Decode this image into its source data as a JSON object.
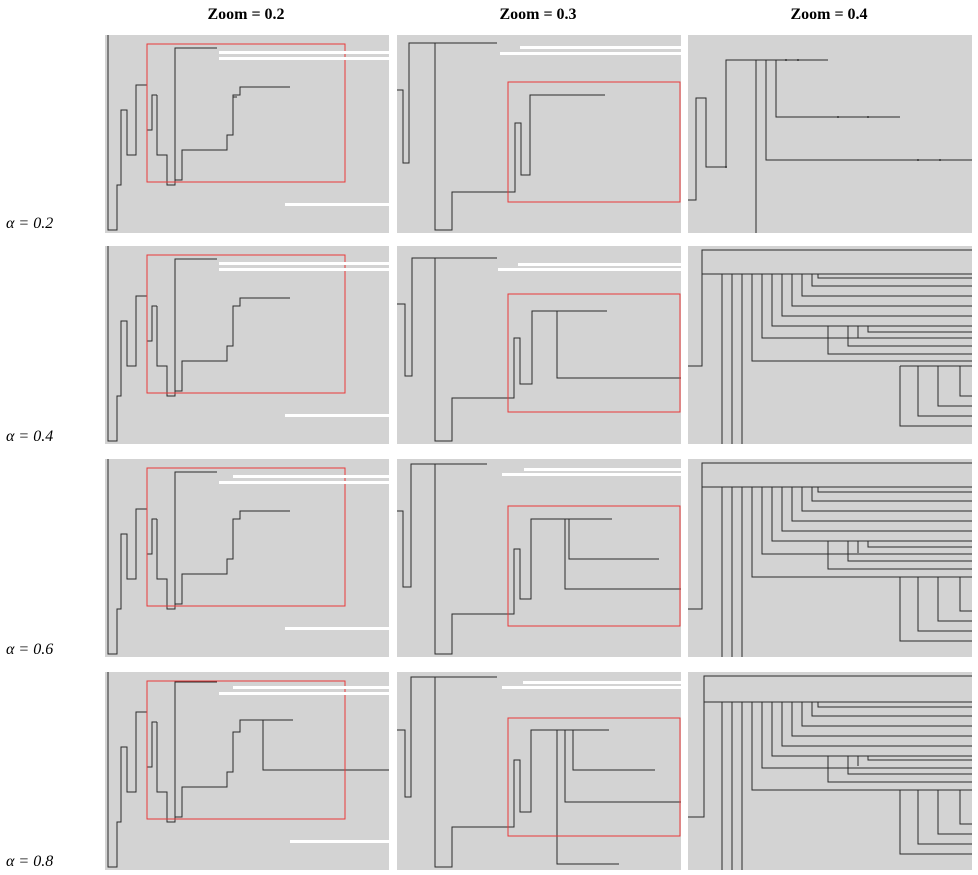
{
  "figure": {
    "columns": [
      "Zoom = 0.2",
      "Zoom = 0.3",
      "Zoom = 0.4"
    ],
    "rows": [
      "α = 0.2",
      "α = 0.4",
      "α = 0.6",
      "α = 0.8"
    ]
  },
  "colors": {
    "panel_bg": "#d3d3d3",
    "line": "#2b2b2b",
    "viewport": "#e83a3a",
    "white_bar": "#ffffff"
  }
}
